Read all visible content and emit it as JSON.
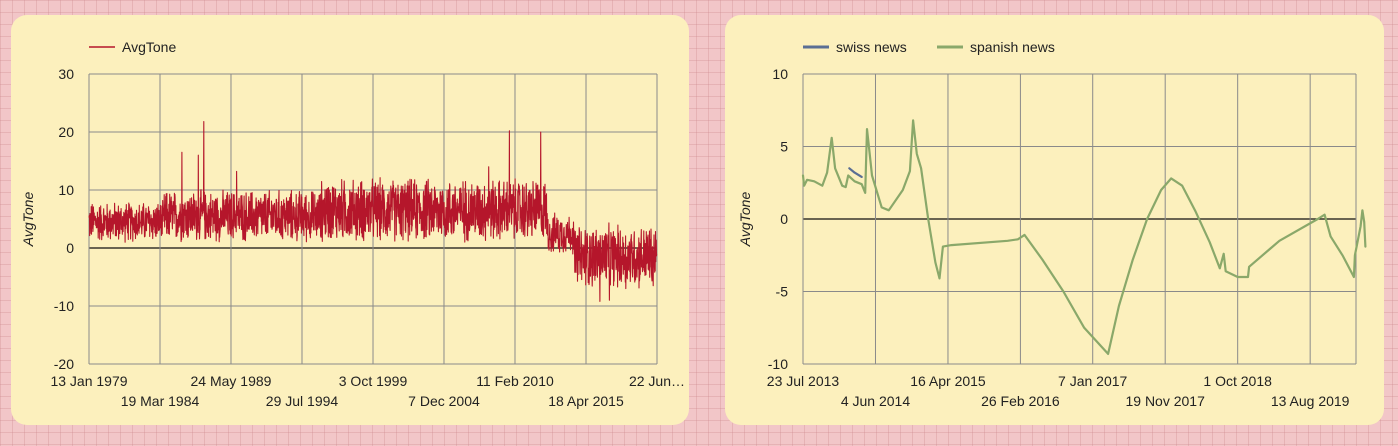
{
  "chart_data": [
    {
      "type": "line",
      "series": [
        {
          "name": "AvgTone",
          "color": "#b5162b"
        }
      ],
      "ylabel": "AvgTone",
      "ylim": [
        -20,
        30
      ],
      "yticks": [
        "30",
        "20",
        "10",
        "0",
        "-10",
        "-20"
      ],
      "ytick_values": [
        30,
        20,
        10,
        0,
        -10,
        -20
      ],
      "xlim": [
        "1979-01-13",
        "2020-06-22"
      ],
      "xticks": [
        {
          "date": "1979-01-13",
          "label": "13 Jan 1979",
          "row": 1
        },
        {
          "date": "1984-03-19",
          "label": "19 Mar 1984",
          "row": 2
        },
        {
          "date": "1989-05-24",
          "label": "24 May 1989",
          "row": 1
        },
        {
          "date": "1994-07-29",
          "label": "29 Jul 1994",
          "row": 2
        },
        {
          "date": "1999-10-03",
          "label": "3 Oct 1999",
          "row": 1
        },
        {
          "date": "2004-12-07",
          "label": "7 Dec 2004",
          "row": 2
        },
        {
          "date": "2010-02-11",
          "label": "11 Feb 2010",
          "row": 1
        },
        {
          "date": "2015-04-18",
          "label": "18 Apr 2015",
          "row": 2
        },
        {
          "date": "2020-06-22",
          "label": "22 Jun…",
          "row": 1
        }
      ],
      "noise_segments": [
        {
          "from": 1979.03,
          "to": 1984.5,
          "base": 4.5,
          "amp": 3.5
        },
        {
          "from": 1984.5,
          "to": 1996.0,
          "base": 5.5,
          "amp": 4.5
        },
        {
          "from": 1996.0,
          "to": 2012.5,
          "base": 6.5,
          "amp": 5.5
        },
        {
          "from": 2012.5,
          "to": 2014.4,
          "base": 2.5,
          "amp": 3.5
        },
        {
          "from": 2014.4,
          "to": 2020.47,
          "base": -1.5,
          "amp": 5.5
        }
      ],
      "peaks": [
        {
          "x": 1987.4,
          "y": 21.8
        },
        {
          "x": 1987.0,
          "y": 16.0
        },
        {
          "x": 1985.8,
          "y": 16.5
        },
        {
          "x": 1989.8,
          "y": 13.2
        },
        {
          "x": 2009.7,
          "y": 20.2
        },
        {
          "x": 2012.0,
          "y": 20.0
        },
        {
          "x": 2008.2,
          "y": 14.0
        },
        {
          "x": 2016.3,
          "y": -9.2
        },
        {
          "x": 2017.0,
          "y": -9.0
        },
        {
          "x": 2018.2,
          "y": -7.0
        },
        {
          "x": 2020.2,
          "y": -6.5
        }
      ]
    },
    {
      "type": "line",
      "ylabel": "AvgTone",
      "ylim": [
        -10,
        10
      ],
      "yticks": [
        "10",
        "5",
        "0",
        "-5",
        "-10"
      ],
      "ytick_values": [
        10,
        5,
        0,
        -5,
        -10
      ],
      "xlim": [
        "2013-07-23",
        "2020-02-29"
      ],
      "xticks": [
        {
          "date": "2013-07-23",
          "label": "23 Jul 2013",
          "row": 1
        },
        {
          "date": "2014-06-04",
          "label": "4 Jun 2014",
          "row": 2
        },
        {
          "date": "2015-04-16",
          "label": "16 Apr 2015",
          "row": 1
        },
        {
          "date": "2016-02-26",
          "label": "26 Feb 2016",
          "row": 2
        },
        {
          "date": "2017-01-07",
          "label": "7 Jan 2017",
          "row": 1
        },
        {
          "date": "2017-11-19",
          "label": "19 Nov 2017",
          "row": 2
        },
        {
          "date": "2018-10-01",
          "label": "1 Oct 2018",
          "row": 1
        },
        {
          "date": "2019-08-13",
          "label": "13 Aug 2019",
          "row": 2
        }
      ],
      "series": [
        {
          "name": "swiss news",
          "color": "#5a6e94",
          "points": [
            [
              "2014-02-10",
              3.5
            ],
            [
              "2014-03-05",
              3.2
            ],
            [
              "2014-04-05",
              2.9
            ]
          ]
        },
        {
          "name": "spanish news",
          "color": "#8aa86a",
          "points": [
            [
              "2013-07-23",
              3.0
            ],
            [
              "2013-07-28",
              2.3
            ],
            [
              "2013-08-10",
              2.7
            ],
            [
              "2013-09-10",
              2.6
            ],
            [
              "2013-10-15",
              2.3
            ],
            [
              "2013-11-05",
              3.2
            ],
            [
              "2013-11-25",
              5.6
            ],
            [
              "2013-12-10",
              3.5
            ],
            [
              "2014-01-10",
              2.3
            ],
            [
              "2014-01-25",
              2.2
            ],
            [
              "2014-02-05",
              3.0
            ],
            [
              "2014-03-05",
              2.6
            ],
            [
              "2014-04-05",
              2.4
            ],
            [
              "2014-04-20",
              1.8
            ],
            [
              "2014-04-28",
              6.2
            ],
            [
              "2014-05-05",
              5.2
            ],
            [
              "2014-05-20",
              3.0
            ],
            [
              "2014-07-01",
              0.8
            ],
            [
              "2014-08-01",
              0.6
            ],
            [
              "2014-10-01",
              2.0
            ],
            [
              "2014-11-01",
              3.3
            ],
            [
              "2014-11-15",
              6.8
            ],
            [
              "2014-12-01",
              4.5
            ],
            [
              "2014-12-20",
              3.5
            ],
            [
              "2015-01-20",
              0.0
            ],
            [
              "2015-02-20",
              -3.0
            ],
            [
              "2015-03-10",
              -4.1
            ],
            [
              "2015-03-25",
              -1.9
            ],
            [
              "2015-05-01",
              -1.8
            ],
            [
              "2016-01-01",
              -1.5
            ],
            [
              "2016-02-15",
              -1.4
            ],
            [
              "2016-03-15",
              -1.1
            ],
            [
              "2016-06-01",
              -2.8
            ],
            [
              "2016-09-01",
              -5.0
            ],
            [
              "2016-12-01",
              -7.5
            ],
            [
              "2017-03-15",
              -9.3
            ],
            [
              "2017-05-01",
              -6.0
            ],
            [
              "2017-07-01",
              -2.8
            ],
            [
              "2017-09-01",
              0.0
            ],
            [
              "2017-11-01",
              2.0
            ],
            [
              "2017-12-15",
              2.8
            ],
            [
              "2018-02-01",
              2.3
            ],
            [
              "2018-04-01",
              0.5
            ],
            [
              "2018-06-01",
              -1.6
            ],
            [
              "2018-07-15",
              -3.4
            ],
            [
              "2018-08-01",
              -2.4
            ],
            [
              "2018-08-10",
              -3.6
            ],
            [
              "2018-10-01",
              -4.0
            ],
            [
              "2018-11-15",
              -4.0
            ],
            [
              "2018-11-20",
              -3.3
            ],
            [
              "2019-04-01",
              -1.5
            ],
            [
              "2019-09-15",
              0.0
            ],
            [
              "2019-10-15",
              0.3
            ],
            [
              "2019-11-10",
              -1.2
            ],
            [
              "2020-01-01",
              -2.5
            ],
            [
              "2020-02-20",
              -4.0
            ],
            [
              "2020-02-24",
              -2.5
            ],
            [
              "2020-03-20",
              -0.5
            ],
            [
              "2020-03-28",
              0.6
            ],
            [
              "2020-04-05",
              -0.2
            ],
            [
              "2020-04-10",
              -1.9
            ]
          ]
        }
      ]
    }
  ]
}
